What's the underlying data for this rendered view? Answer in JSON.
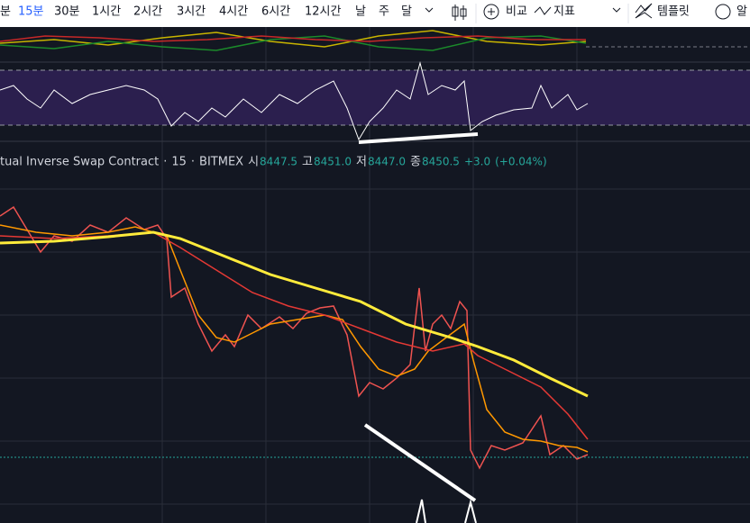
{
  "toolbar": {
    "intervals": [
      "분",
      "15분",
      "30분",
      "1시간",
      "2시간",
      "3시간",
      "4시간",
      "6시간",
      "12시간",
      "날",
      "주",
      "달"
    ],
    "compare": "비교",
    "indicators": "지표",
    "templates": "템플릿",
    "alert": "알"
  },
  "legend": {
    "symbol": "tual Inverse Swap Contract",
    "dot1": "·",
    "interval": "15",
    "dot2": "·",
    "exchange": "BITMEX",
    "open_label": "시",
    "open": "8447.5",
    "high_label": "고",
    "high": "8451.0",
    "low_label": "저",
    "low": "8447.0",
    "close_label": "종",
    "close": "8450.5",
    "change": "+3.0",
    "change_pct": "(+0.04%)"
  }
}
